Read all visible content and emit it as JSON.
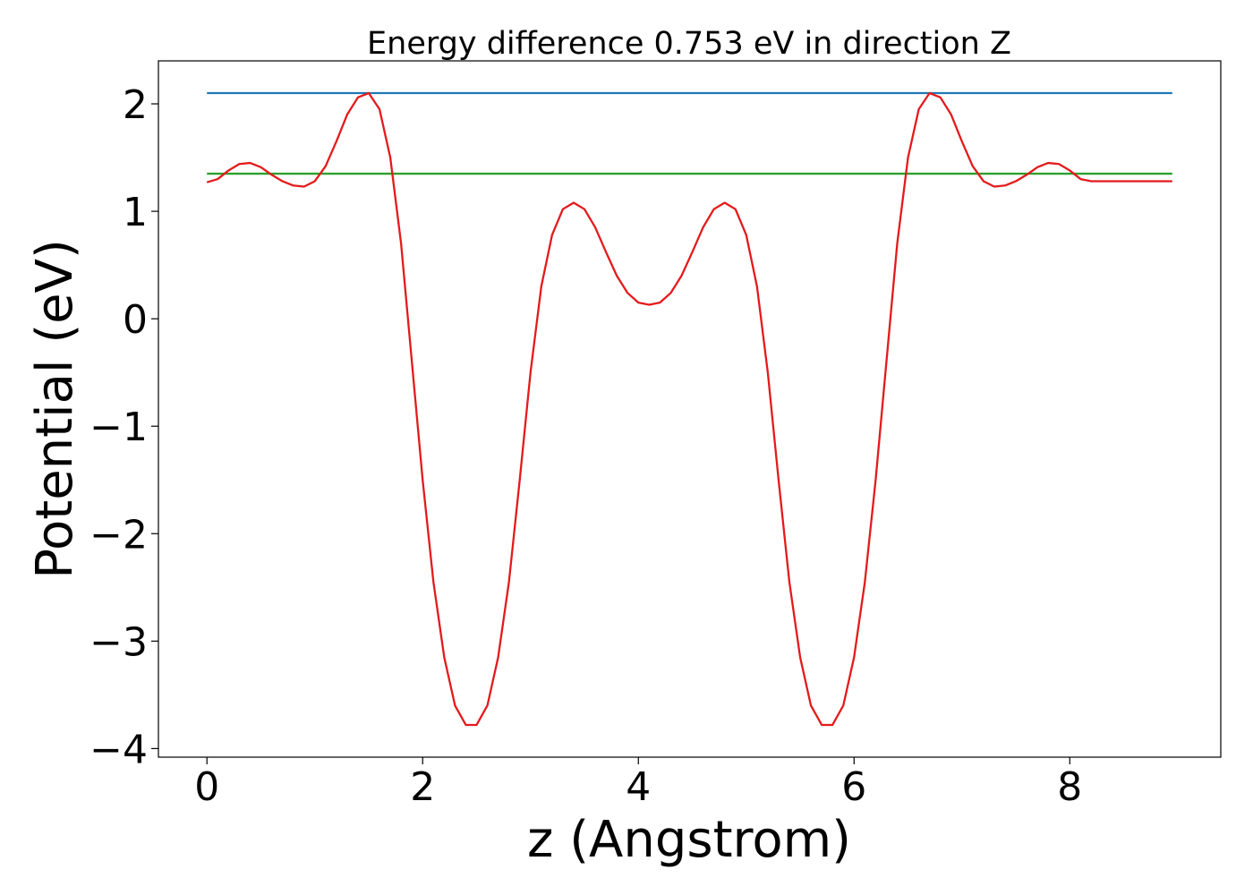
{
  "chart_data": {
    "type": "line",
    "title": "Energy difference 0.753 eV in direction Z",
    "xlabel": "z (Angstrom)",
    "ylabel": "Potential (eV)",
    "xlim": [
      -0.45,
      9.4
    ],
    "ylim": [
      -4.08,
      2.4
    ],
    "x_ticks": [
      0,
      2,
      4,
      6,
      8
    ],
    "x_tick_labels": [
      "0",
      "2",
      "4",
      "6",
      "8"
    ],
    "y_ticks": [
      2,
      1,
      0,
      -1,
      -2,
      -3,
      -4
    ],
    "y_tick_labels": [
      "2",
      "1",
      "0",
      "−1",
      "−2",
      "−3",
      "−4"
    ],
    "grid": false,
    "series": [
      {
        "color": "#1f77b4",
        "kind": "hline",
        "x": [
          0,
          8.95
        ],
        "y": [
          2.1,
          2.1
        ]
      },
      {
        "color": "#2ca02c",
        "kind": "hline",
        "x": [
          0,
          8.95
        ],
        "y": [
          1.35,
          1.35
        ]
      },
      {
        "color": "#e41a1c",
        "kind": "curve",
        "x": [
          0,
          0.1,
          0.2,
          0.3,
          0.4,
          0.5,
          0.6,
          0.7,
          0.8,
          0.9,
          1.0,
          1.1,
          1.2,
          1.3,
          1.4,
          1.5,
          1.6,
          1.7,
          1.8,
          1.9,
          2.0,
          2.1,
          2.2,
          2.3,
          2.4,
          2.5,
          2.6,
          2.7,
          2.8,
          2.9,
          3.0,
          3.1,
          3.2,
          3.3,
          3.4,
          3.5,
          3.6,
          3.7,
          3.8,
          3.9,
          4.0,
          4.1,
          4.2,
          4.3,
          4.4,
          4.5,
          4.6,
          4.7,
          4.8,
          4.9,
          5.0,
          5.1,
          5.2,
          5.3,
          5.4,
          5.5,
          5.6,
          5.7,
          5.8,
          5.9,
          6.0,
          6.1,
          6.2,
          6.3,
          6.4,
          6.5,
          6.6,
          6.7,
          6.8,
          6.9,
          7.0,
          7.1,
          7.2,
          7.3,
          7.4,
          7.5,
          7.6,
          7.7,
          7.8,
          7.9,
          8.0,
          8.1,
          8.2,
          8.3,
          8.4,
          8.5,
          8.6,
          8.7,
          8.8,
          8.9,
          8.95
        ],
        "y": [
          1.27,
          1.3,
          1.38,
          1.44,
          1.45,
          1.41,
          1.34,
          1.28,
          1.24,
          1.23,
          1.28,
          1.42,
          1.65,
          1.9,
          2.06,
          2.1,
          1.95,
          1.5,
          0.7,
          -0.4,
          -1.5,
          -2.45,
          -3.15,
          -3.6,
          -3.78,
          -3.78,
          -3.6,
          -3.15,
          -2.45,
          -1.5,
          -0.5,
          0.3,
          0.78,
          1.02,
          1.08,
          1.02,
          0.85,
          0.62,
          0.4,
          0.24,
          0.15,
          0.13,
          0.15,
          0.24,
          0.4,
          0.62,
          0.85,
          1.02,
          1.08,
          1.02,
          0.78,
          0.3,
          -0.5,
          -1.5,
          -2.45,
          -3.15,
          -3.6,
          -3.78,
          -3.78,
          -3.6,
          -3.15,
          -2.45,
          -1.5,
          -0.4,
          0.7,
          1.5,
          1.95,
          2.1,
          2.06,
          1.9,
          1.65,
          1.42,
          1.28,
          1.23,
          1.24,
          1.28,
          1.34,
          1.41,
          1.45,
          1.44,
          1.38,
          1.3,
          1.28,
          1.28,
          1.28,
          1.28,
          1.28,
          1.28,
          1.28,
          1.28,
          1.28
        ]
      }
    ]
  }
}
